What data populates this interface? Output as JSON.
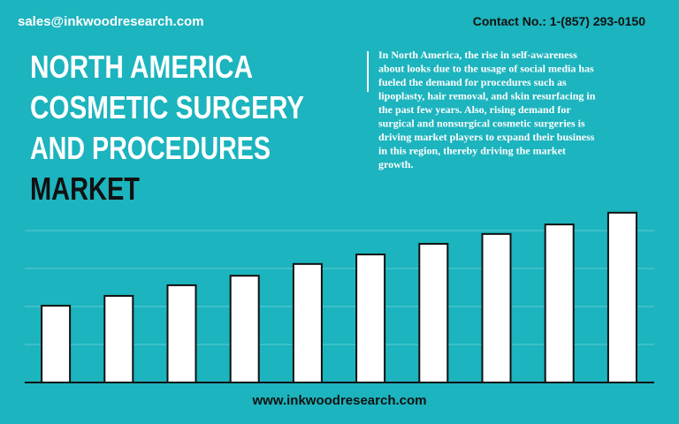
{
  "header": {
    "email": "sales@inkwoodresearch.com",
    "contact": "Contact No.: 1-(857) 293-0150"
  },
  "title": {
    "lines": [
      "NORTH AMERICA",
      "COSMETIC SURGERY",
      "AND PROCEDURES"
    ],
    "highlight": "MARKET"
  },
  "description": {
    "lines": [
      "In North America, the rise in self-awareness",
      "about looks due to the usage of social media has",
      "fueled the demand for procedures such as",
      "lipoplasty, hair removal, and skin resurfacing in",
      "the past few years. Also, rising demand for",
      "surgical and nonsurgical cosmetic surgeries is",
      "driving market players to expand their business",
      "in this region, thereby driving the market",
      "growth."
    ]
  },
  "footer": {
    "website": "www.inkwoodresearch.com"
  },
  "chart_data": {
    "type": "bar",
    "categories": [
      null,
      null,
      null,
      null,
      null,
      null,
      null,
      null,
      null,
      null
    ],
    "values": [
      2.02,
      2.28,
      2.56,
      2.81,
      3.12,
      3.37,
      3.65,
      3.91,
      4.16,
      4.47
    ],
    "color": "#ffffff",
    "ylim": [
      0,
      4.5
    ],
    "yticks": [
      1,
      2,
      3,
      4
    ],
    "grid": true
  }
}
